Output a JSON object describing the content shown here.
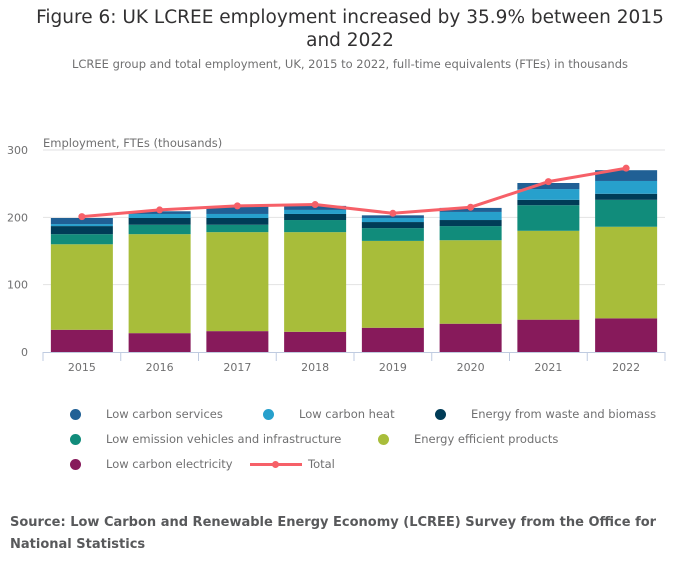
{
  "title": "Figure 6: UK LCREE employment increased by 35.9% between 2015 and 2022",
  "subtitle": "LCREE group and total employment, UK, 2015 to 2022, full-time equivalents (FTEs) in thousands",
  "source": "Source: Low Carbon and Renewable Energy Economy (LCREE) Survey from the Office for National Statistics",
  "chart_data": {
    "type": "bar",
    "stacked": true,
    "ylabel": "Employment, FTEs (thousands)",
    "ylim": [
      0,
      300
    ],
    "yticks": [
      "0",
      "100",
      "200",
      "300"
    ],
    "grid": true,
    "legend_placement": "bottom",
    "categories": [
      "2015",
      "2016",
      "2017",
      "2018",
      "2019",
      "2020",
      "2021",
      "2022"
    ],
    "series": [
      {
        "name": "Low carbon electricity",
        "color": "#871a5b",
        "values": [
          33,
          28,
          31,
          30,
          36,
          42,
          48,
          50
        ]
      },
      {
        "name": "Energy efficient products",
        "color": "#a8bd3a",
        "values": [
          127,
          147,
          147,
          148,
          129,
          124,
          132,
          136
        ]
      },
      {
        "name": "Low emission vehicles and infrastructure",
        "color": "#118c7b",
        "values": [
          15,
          14,
          11,
          18,
          19,
          21,
          38,
          40
        ]
      },
      {
        "name": "Energy from waste and biomass",
        "color": "#003c57",
        "values": [
          12,
          10,
          10,
          9,
          9,
          9,
          8,
          9
        ]
      },
      {
        "name": "Low carbon heat",
        "color": "#27a0cc",
        "values": [
          3,
          6,
          6,
          6,
          6,
          12,
          16,
          19
        ]
      },
      {
        "name": "Low carbon services",
        "color": "#206095",
        "values": [
          9,
          4,
          11,
          6,
          4,
          6,
          9,
          16
        ]
      }
    ],
    "line": {
      "name": "Total",
      "color": "#f66068",
      "values": [
        201,
        211,
        217,
        219,
        206,
        215,
        253,
        273
      ]
    }
  }
}
